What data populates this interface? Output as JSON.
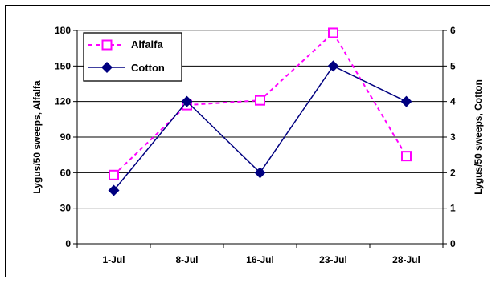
{
  "chart_data": {
    "type": "line",
    "categories": [
      "1-Jul",
      "8-Jul",
      "16-Jul",
      "23-Jul",
      "28-Jul"
    ],
    "series": [
      {
        "name": "Alfalfa",
        "axis": "left",
        "values": [
          58,
          117,
          121,
          178,
          74
        ],
        "color": "#ff00ff",
        "style": "dashed",
        "marker": "square"
      },
      {
        "name": "Cotton",
        "axis": "right",
        "values": [
          1.5,
          4,
          2,
          5,
          4
        ],
        "color": "#000080",
        "style": "solid",
        "marker": "diamond"
      }
    ],
    "y_left": {
      "label": "Lygus/50 sweeps, Alfalfa",
      "ylim": [
        0,
        180
      ],
      "ticks": [
        0,
        30,
        60,
        90,
        120,
        150,
        180
      ]
    },
    "y_right": {
      "label": "Lygus/50 sweeps, Cotton",
      "ylim": [
        0,
        6
      ],
      "ticks": [
        0,
        1,
        2,
        3,
        4,
        5,
        6
      ]
    },
    "grid": true,
    "legend_position": "top-left"
  }
}
